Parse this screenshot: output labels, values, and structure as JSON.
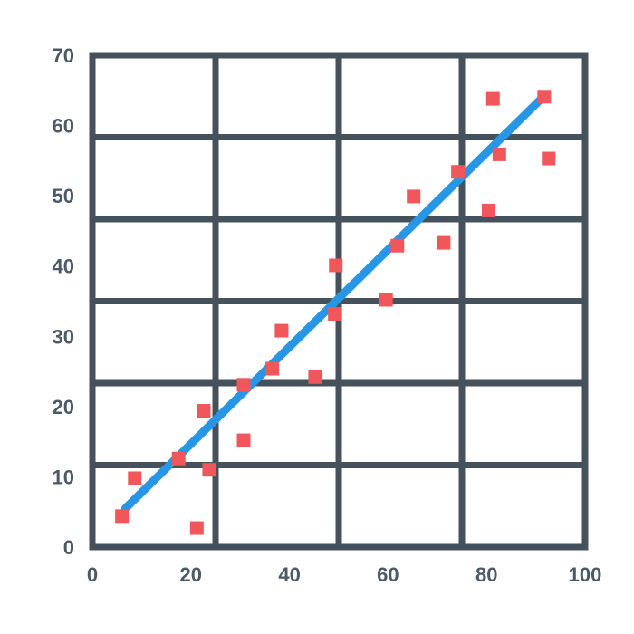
{
  "chart_data": {
    "type": "scatter",
    "title": "",
    "xlabel": "",
    "ylabel": "",
    "xlim": [
      0,
      100
    ],
    "ylim": [
      0,
      70
    ],
    "x_ticks": [
      "0",
      "20",
      "40",
      "60",
      "80",
      "100"
    ],
    "y_ticks": [
      "0",
      "10",
      "20",
      "30",
      "40",
      "50",
      "60",
      "70"
    ],
    "grid": true,
    "legend": "none",
    "colors": {
      "grid": "#45525c",
      "points": "#f0565a",
      "trend": "#2896e6",
      "tick_text": "#4b5a66"
    },
    "series": [
      {
        "kind": "points",
        "points": [
          {
            "x": 6,
            "y": 4.4
          },
          {
            "x": 8.6,
            "y": 9.8
          },
          {
            "x": 17.5,
            "y": 12.6
          },
          {
            "x": 21.2,
            "y": 2.7
          },
          {
            "x": 22.6,
            "y": 19.4
          },
          {
            "x": 23.7,
            "y": 11
          },
          {
            "x": 30.7,
            "y": 15.2
          },
          {
            "x": 30.7,
            "y": 23.1
          },
          {
            "x": 36.5,
            "y": 25.4
          },
          {
            "x": 38.4,
            "y": 30.8
          },
          {
            "x": 45.2,
            "y": 24.2
          },
          {
            "x": 49.2,
            "y": 33.2
          },
          {
            "x": 49.4,
            "y": 40.1
          },
          {
            "x": 59.6,
            "y": 35.2
          },
          {
            "x": 61.9,
            "y": 42.9
          },
          {
            "x": 65.2,
            "y": 49.9
          },
          {
            "x": 71.3,
            "y": 43.3
          },
          {
            "x": 74.2,
            "y": 53.4
          },
          {
            "x": 80.4,
            "y": 47.9
          },
          {
            "x": 81.3,
            "y": 63.8
          },
          {
            "x": 82.6,
            "y": 55.9
          },
          {
            "x": 91.7,
            "y": 64.1
          },
          {
            "x": 92.6,
            "y": 55.3
          }
        ]
      },
      {
        "kind": "trendline",
        "points": [
          {
            "x": 6.7,
            "y": 5.5
          },
          {
            "x": 90.8,
            "y": 63.6
          }
        ]
      }
    ]
  }
}
